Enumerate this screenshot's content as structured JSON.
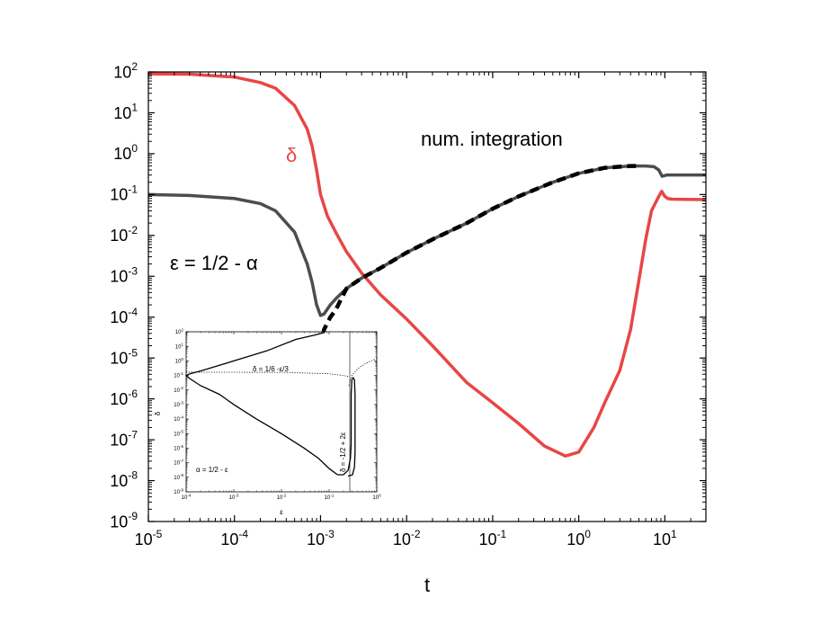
{
  "chart_data": {
    "type": "line",
    "xlabel": "t",
    "ylabel": "",
    "xscale": "log",
    "yscale": "log",
    "xlim": [
      1e-05,
      30
    ],
    "ylim": [
      1e-09,
      100
    ],
    "x_ticks": [
      {
        "base": "10",
        "exp": "-5"
      },
      {
        "base": "10",
        "exp": "-4"
      },
      {
        "base": "10",
        "exp": "-3"
      },
      {
        "base": "10",
        "exp": "-2"
      },
      {
        "base": "10",
        "exp": "-1"
      },
      {
        "base": "10",
        "exp": "0"
      },
      {
        "base": "10",
        "exp": "1"
      }
    ],
    "y_ticks": [
      {
        "base": "10",
        "exp": "2"
      },
      {
        "base": "10",
        "exp": "1"
      },
      {
        "base": "10",
        "exp": "0"
      },
      {
        "base": "10",
        "exp": "-1"
      },
      {
        "base": "10",
        "exp": "-2"
      },
      {
        "base": "10",
        "exp": "-3"
      },
      {
        "base": "10",
        "exp": "-4"
      },
      {
        "base": "10",
        "exp": "-5"
      },
      {
        "base": "10",
        "exp": "-6"
      },
      {
        "base": "10",
        "exp": "-7"
      },
      {
        "base": "10",
        "exp": "-8"
      },
      {
        "base": "10",
        "exp": "-9"
      }
    ],
    "annotations": {
      "delta_label": "δ",
      "numint_label": "num. integration",
      "eps_label": "ε = 1/2 - α"
    },
    "series": [
      {
        "name": "δ",
        "color": "#e84646",
        "style": "solid",
        "points": [
          [
            1e-05,
            90
          ],
          [
            3e-05,
            88
          ],
          [
            0.0001,
            75
          ],
          [
            0.0002,
            55
          ],
          [
            0.0003,
            40
          ],
          [
            0.0005,
            15
          ],
          [
            0.0007,
            4
          ],
          [
            0.0008,
            1.5
          ],
          [
            0.0009,
            0.4
          ],
          [
            0.001,
            0.1
          ],
          [
            0.0012,
            0.03
          ],
          [
            0.0015,
            0.012
          ],
          [
            0.002,
            0.004
          ],
          [
            0.003,
            0.0012
          ],
          [
            0.005,
            0.00035
          ],
          [
            0.01,
            9e-05
          ],
          [
            0.02,
            2e-05
          ],
          [
            0.05,
            2.5e-06
          ],
          [
            0.1,
            8e-07
          ],
          [
            0.2,
            2.5e-07
          ],
          [
            0.4,
            7e-08
          ],
          [
            0.7,
            4e-08
          ],
          [
            1,
            5e-08
          ],
          [
            1.5,
            2e-07
          ],
          [
            2,
            8e-07
          ],
          [
            3,
            5e-06
          ],
          [
            4,
            5e-05
          ],
          [
            5,
            0.0008
          ],
          [
            6,
            0.008
          ],
          [
            7,
            0.04
          ],
          [
            8.5,
            0.09
          ],
          [
            9.2,
            0.12
          ],
          [
            10,
            0.09
          ],
          [
            10.8,
            0.08
          ],
          [
            12,
            0.077
          ],
          [
            30,
            0.075
          ]
        ]
      },
      {
        "name": "ε",
        "color": "#4d4d4d",
        "style": "solid",
        "points": [
          [
            1e-05,
            0.1
          ],
          [
            3e-05,
            0.095
          ],
          [
            0.0001,
            0.08
          ],
          [
            0.0002,
            0.06
          ],
          [
            0.0003,
            0.04
          ],
          [
            0.0005,
            0.012
          ],
          [
            0.0007,
            0.002
          ],
          [
            0.0008,
            0.0007
          ],
          [
            0.0009,
            0.0002
          ],
          [
            0.001,
            0.00011
          ],
          [
            0.0011,
            0.00012
          ],
          [
            0.0013,
            0.0002
          ],
          [
            0.0015,
            0.00028
          ],
          [
            0.002,
            0.0005
          ],
          [
            0.003,
            0.0009
          ],
          [
            0.005,
            0.0016
          ],
          [
            0.01,
            0.0038
          ],
          [
            0.02,
            0.008
          ],
          [
            0.05,
            0.02
          ],
          [
            0.1,
            0.045
          ],
          [
            0.2,
            0.09
          ],
          [
            0.5,
            0.2
          ],
          [
            1,
            0.33
          ],
          [
            2,
            0.45
          ],
          [
            4,
            0.5
          ],
          [
            6,
            0.5
          ],
          [
            7.5,
            0.48
          ],
          [
            8.5,
            0.4
          ],
          [
            9.3,
            0.28
          ],
          [
            10.5,
            0.3
          ],
          [
            30,
            0.3
          ]
        ]
      },
      {
        "name": "",
        "color": "#000000",
        "style": "dashed",
        "points": [
          [
            0.00097,
            8e-06
          ],
          [
            0.001,
            1.5e-05
          ],
          [
            0.00105,
            3e-05
          ],
          [
            0.0011,
            5e-05
          ],
          [
            0.0013,
            0.0001
          ],
          [
            0.0015,
            0.00015
          ],
          [
            0.002,
            0.0005
          ],
          [
            0.003,
            0.0009
          ],
          [
            0.005,
            0.0016
          ],
          [
            0.01,
            0.0038
          ],
          [
            0.02,
            0.008
          ],
          [
            0.05,
            0.02
          ],
          [
            0.1,
            0.045
          ],
          [
            0.2,
            0.09
          ],
          [
            0.5,
            0.2
          ],
          [
            1,
            0.33
          ],
          [
            2,
            0.45
          ],
          [
            4,
            0.5
          ],
          [
            5,
            0.5
          ]
        ]
      }
    ],
    "inset": {
      "xlabel": "ε",
      "ylabel": "δ",
      "xscale": "log",
      "yscale": "log",
      "xlim": [
        0.0001,
        1
      ],
      "ylim": [
        1e-09,
        100
      ],
      "x_ticks": [
        {
          "base": "10",
          "exp": "-4"
        },
        {
          "base": "10",
          "exp": "-3"
        },
        {
          "base": "10",
          "exp": "-2"
        },
        {
          "base": "10",
          "exp": "-1"
        },
        {
          "base": "10",
          "exp": "0"
        }
      ],
      "y_ticks": [
        {
          "base": "10",
          "exp": "2"
        },
        {
          "base": "10",
          "exp": "1"
        },
        {
          "base": "10",
          "exp": "0"
        },
        {
          "base": "10",
          "exp": "-1"
        },
        {
          "base": "10",
          "exp": "-2"
        },
        {
          "base": "10",
          "exp": "-3"
        },
        {
          "base": "10",
          "exp": "-4"
        },
        {
          "base": "10",
          "exp": "-5"
        },
        {
          "base": "10",
          "exp": "-6"
        },
        {
          "base": "10",
          "exp": "-7"
        },
        {
          "base": "10",
          "exp": "-8"
        },
        {
          "base": "10",
          "exp": "-9"
        }
      ],
      "annotations": {
        "curve1_label": "δ = 1/6 -ε/3",
        "curve2_label": "δ = -1/2 + 2ε",
        "alpha_label": "α = 1/2 - ε"
      },
      "series": [
        {
          "name": "",
          "style": "solid",
          "points": [
            [
              0.08,
              90
            ],
            [
              0.05,
              60
            ],
            [
              0.02,
              30
            ],
            [
              0.005,
              5
            ],
            [
              0.002,
              2
            ],
            [
              0.0005,
              0.5
            ],
            [
              0.0002,
              0.2
            ],
            [
              0.00012,
              0.13
            ],
            [
              0.0001,
              0.1
            ],
            [
              0.00012,
              0.06
            ],
            [
              0.0002,
              0.02
            ],
            [
              0.0005,
              0.005
            ],
            [
              0.001,
              0.001
            ],
            [
              0.003,
              0.0001
            ],
            [
              0.01,
              1e-05
            ],
            [
              0.03,
              1e-06
            ],
            [
              0.06,
              2e-07
            ],
            [
              0.1,
              4e-08
            ],
            [
              0.15,
              1.5e-08
            ],
            [
              0.2,
              1.5e-08
            ],
            [
              0.25,
              3e-08
            ],
            [
              0.28,
              2e-07
            ],
            [
              0.29,
              2e-06
            ],
            [
              0.29,
              0.0001
            ],
            [
              0.29,
              0.005
            ],
            [
              0.3,
              0.05
            ],
            [
              0.32,
              0.07
            ],
            [
              0.34,
              0.05
            ],
            [
              0.35,
              0.005
            ],
            [
              0.35,
              5e-05
            ],
            [
              0.35,
              5e-07
            ],
            [
              0.34,
              5e-08
            ],
            [
              0.31,
              1.5e-08
            ],
            [
              0.25,
              1.2e-08
            ]
          ]
        },
        {
          "name": "",
          "style": "dotted",
          "points": [
            [
              0.0001,
              0.1667
            ],
            [
              0.01,
              0.1633
            ],
            [
              0.1,
              0.13
            ],
            [
              0.2,
              0.1
            ],
            [
              0.25,
              0.083
            ]
          ]
        },
        {
          "name": "",
          "style": "dotted",
          "points": [
            [
              0.26,
              0.02
            ],
            [
              0.3,
              0.1
            ],
            [
              0.4,
              0.3
            ],
            [
              0.6,
              0.7
            ],
            [
              1,
              1.5
            ]
          ]
        }
      ]
    }
  }
}
